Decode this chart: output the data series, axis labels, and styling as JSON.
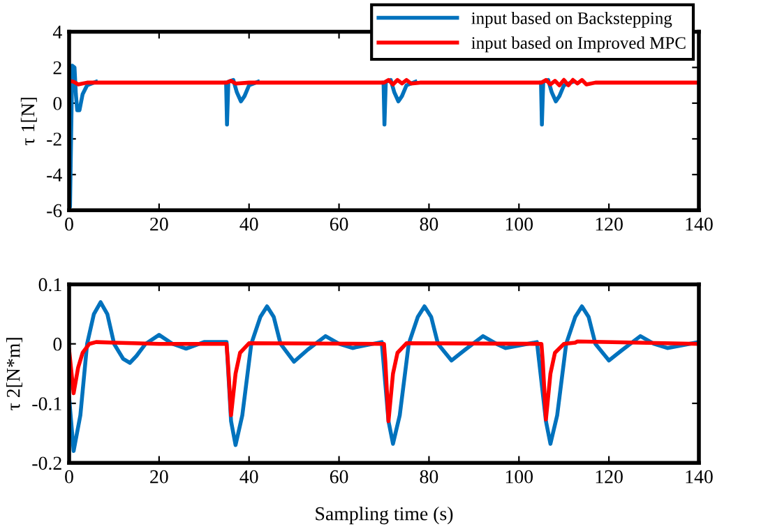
{
  "chart_data": [
    {
      "type": "line",
      "ylabel": "τ 1[N]",
      "xlim": [
        0,
        140
      ],
      "xticks": [
        0,
        20,
        40,
        60,
        80,
        100,
        120,
        140
      ],
      "ylim": [
        -6,
        4
      ],
      "yticks": [
        -6,
        -4,
        -2,
        0,
        2,
        4
      ],
      "grid": false,
      "legend": "top right",
      "line_style": "solid",
      "marker": "none",
      "series": [
        {
          "name": "input based on Backstepping",
          "color": "#0072bd",
          "x": [
            0,
            0.2,
            0.5,
            0.7,
            1.2,
            1.5,
            1.8,
            2.3,
            3,
            4,
            6,
            8,
            10,
            20,
            34.9,
            35.1,
            35.4,
            36.5,
            37.3,
            38.2,
            39,
            40,
            42,
            50,
            69.9,
            70.1,
            70.4,
            71.5,
            72.3,
            73.2,
            74,
            75,
            77,
            85,
            104.9,
            105.1,
            105.4,
            106.5,
            107.3,
            108.2,
            109,
            110,
            112
          ],
          "values": [
            -4.8,
            -5.8,
            -1,
            2.1,
            2.0,
            0.5,
            -0.4,
            -0.4,
            0.5,
            1.0,
            1.2,
            null,
            null,
            null,
            1.15,
            -1.2,
            1.2,
            1.3,
            0.6,
            0.1,
            0.4,
            1.0,
            1.2,
            null,
            1.15,
            -1.2,
            1.2,
            1.3,
            0.6,
            0.1,
            0.4,
            1.0,
            1.2,
            null,
            1.15,
            -1.2,
            1.2,
            1.3,
            0.6,
            0.1,
            0.4,
            1.0,
            1.2
          ]
        },
        {
          "name": "input based on Improved MPC",
          "color": "#ff0000",
          "x": [
            0,
            1,
            2,
            4,
            10,
            35,
            36,
            37,
            40,
            70,
            71,
            72,
            73,
            74,
            75,
            76,
            78,
            105,
            106,
            107,
            108,
            109,
            110,
            111,
            112,
            113,
            114,
            115,
            117,
            140
          ],
          "values": [
            1.25,
            1.2,
            1.05,
            1.15,
            1.15,
            1.15,
            1.25,
            1.1,
            1.15,
            1.15,
            1.3,
            1.05,
            1.3,
            1.1,
            1.3,
            1.1,
            1.15,
            1.15,
            1.3,
            1.05,
            1.25,
            1.0,
            1.3,
            1.0,
            1.3,
            1.1,
            1.3,
            1.05,
            1.15,
            1.15
          ]
        }
      ]
    },
    {
      "type": "line",
      "xlabel": "Sampling time (s)",
      "ylabel": "τ 2[N*m]",
      "xlim": [
        0,
        140
      ],
      "xticks": [
        0,
        20,
        40,
        60,
        80,
        100,
        120,
        140
      ],
      "ylim": [
        -0.2,
        0.1
      ],
      "yticks": [
        -0.2,
        -0.1,
        0,
        0.1
      ],
      "grid": false,
      "line_style": "solid",
      "marker": "none",
      "series": [
        {
          "color": "#0072bd",
          "x": [
            0,
            1,
            2.5,
            4,
            5.5,
            7,
            8.5,
            10,
            12,
            13.5,
            15,
            17,
            20,
            23,
            26,
            30,
            35,
            36,
            37,
            38.5,
            40.5,
            42.5,
            44,
            45.5,
            47,
            50,
            53,
            57,
            60,
            63,
            69.5,
            71,
            72,
            73.5,
            75.5,
            77.5,
            79,
            80.5,
            82,
            85,
            88,
            92,
            95,
            97,
            104,
            106,
            107,
            108.5,
            110.5,
            112.5,
            114,
            115.5,
            117,
            120,
            123,
            127,
            130,
            133,
            140
          ],
          "values": [
            -0.09,
            -0.18,
            -0.12,
            0,
            0.05,
            0.07,
            0.05,
            0,
            -0.025,
            -0.032,
            -0.02,
            0,
            0.015,
            0,
            -0.008,
            0.003,
            0.003,
            -0.13,
            -0.17,
            -0.12,
            0,
            0.045,
            0.063,
            0.045,
            0,
            -0.03,
            -0.01,
            0.013,
            0,
            -0.007,
            0.003,
            -0.13,
            -0.168,
            -0.12,
            0,
            0.045,
            0.063,
            0.045,
            0,
            -0.028,
            -0.01,
            0.013,
            0,
            -0.007,
            0.003,
            -0.13,
            -0.168,
            -0.12,
            0,
            0.045,
            0.063,
            0.045,
            0,
            -0.028,
            -0.01,
            0.013,
            0,
            -0.007,
            0.003
          ]
        },
        {
          "color": "#ff0000",
          "x": [
            0,
            1,
            2,
            3,
            4.5,
            6,
            10,
            20,
            35,
            35.3,
            36,
            37,
            38,
            40,
            70,
            70.3,
            71,
            72,
            73,
            75,
            105,
            105.3,
            106,
            107,
            108,
            110,
            112.5,
            113,
            140
          ],
          "values": [
            -0.01,
            -0.083,
            -0.04,
            -0.015,
            0,
            0.003,
            0.002,
            0,
            0,
            -0.03,
            -0.12,
            -0.05,
            -0.015,
            0.001,
            0,
            -0.03,
            -0.13,
            -0.05,
            -0.015,
            0.001,
            0,
            -0.03,
            -0.127,
            -0.05,
            -0.015,
            0,
            0.002,
            0.004,
            0
          ]
        }
      ]
    }
  ]
}
